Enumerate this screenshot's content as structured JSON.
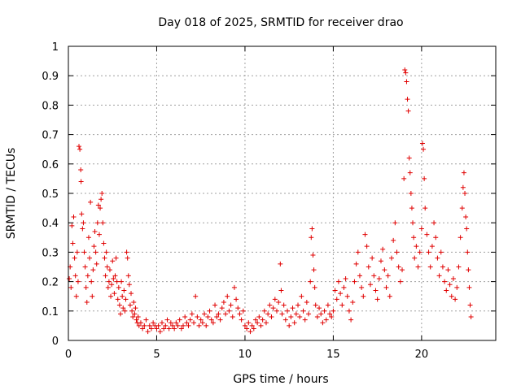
{
  "chart_data": {
    "type": "scatter",
    "title": "Day 018 of 2025, SRMTID for receiver drao",
    "xlabel": "GPS time / hours",
    "ylabel": "SRMTID / TECUs",
    "xlim": [
      0,
      24.2
    ],
    "ylim": [
      0,
      1
    ],
    "xticks": [
      0,
      5,
      10,
      15,
      20
    ],
    "xtick_labels": [
      "0",
      "5",
      "10",
      "15",
      "20"
    ],
    "yticks": [
      0,
      0.1,
      0.2,
      0.3,
      0.4,
      0.5,
      0.6,
      0.7,
      0.8,
      0.9,
      1
    ],
    "ytick_labels": [
      "0",
      "0.1",
      "0.2",
      "0.3",
      "0.4",
      "0.5",
      "0.6",
      "0.7",
      "0.8",
      "0.9",
      "1"
    ],
    "grid": true,
    "marker": "+",
    "color": "#e00000",
    "series": [
      {
        "name": "SRMTID",
        "points": [
          [
            0.05,
            0.21
          ],
          [
            0.1,
            0.25
          ],
          [
            0.15,
            0.18
          ],
          [
            0.2,
            0.39
          ],
          [
            0.25,
            0.33
          ],
          [
            0.3,
            0.42
          ],
          [
            0.35,
            0.28
          ],
          [
            0.4,
            0.22
          ],
          [
            0.45,
            0.15
          ],
          [
            0.5,
            0.3
          ],
          [
            0.55,
            0.2
          ],
          [
            0.6,
            0.66
          ],
          [
            0.65,
            0.65
          ],
          [
            0.7,
            0.58
          ],
          [
            0.72,
            0.54
          ],
          [
            0.75,
            0.43
          ],
          [
            0.8,
            0.38
          ],
          [
            0.85,
            0.4
          ],
          [
            0.9,
            0.3
          ],
          [
            0.95,
            0.25
          ],
          [
            1.0,
            0.18
          ],
          [
            1.05,
            0.13
          ],
          [
            1.1,
            0.22
          ],
          [
            1.15,
            0.35
          ],
          [
            1.2,
            0.28
          ],
          [
            1.25,
            0.47
          ],
          [
            1.3,
            0.2
          ],
          [
            1.35,
            0.15
          ],
          [
            1.4,
            0.24
          ],
          [
            1.45,
            0.32
          ],
          [
            1.5,
            0.37
          ],
          [
            1.55,
            0.3
          ],
          [
            1.6,
            0.26
          ],
          [
            1.65,
            0.4
          ],
          [
            1.7,
            0.46
          ],
          [
            1.75,
            0.36
          ],
          [
            1.8,
            0.45
          ],
          [
            1.85,
            0.48
          ],
          [
            1.9,
            0.5
          ],
          [
            1.95,
            0.4
          ],
          [
            2.0,
            0.33
          ],
          [
            2.05,
            0.28
          ],
          [
            2.1,
            0.22
          ],
          [
            2.15,
            0.3
          ],
          [
            2.2,
            0.25
          ],
          [
            2.25,
            0.18
          ],
          [
            2.3,
            0.2
          ],
          [
            2.35,
            0.24
          ],
          [
            2.4,
            0.15
          ],
          [
            2.45,
            0.19
          ],
          [
            2.5,
            0.27
          ],
          [
            2.55,
            0.21
          ],
          [
            2.6,
            0.16
          ],
          [
            2.65,
            0.22
          ],
          [
            2.7,
            0.28
          ],
          [
            2.75,
            0.2
          ],
          [
            2.8,
            0.14
          ],
          [
            2.85,
            0.18
          ],
          [
            2.9,
            0.12
          ],
          [
            2.95,
            0.09
          ],
          [
            3.0,
            0.2
          ],
          [
            3.05,
            0.15
          ],
          [
            3.1,
            0.11
          ],
          [
            3.15,
            0.17
          ],
          [
            3.2,
            0.1
          ],
          [
            3.25,
            0.14
          ],
          [
            3.3,
            0.3
          ],
          [
            3.35,
            0.28
          ],
          [
            3.4,
            0.22
          ],
          [
            3.45,
            0.19
          ],
          [
            3.5,
            0.12
          ],
          [
            3.55,
            0.16
          ],
          [
            3.6,
            0.1
          ],
          [
            3.65,
            0.08
          ],
          [
            3.7,
            0.13
          ],
          [
            3.75,
            0.09
          ],
          [
            3.8,
            0.11
          ],
          [
            3.85,
            0.07
          ],
          [
            3.9,
            0.06
          ],
          [
            3.95,
            0.08
          ],
          [
            4.0,
            0.05
          ],
          [
            4.1,
            0.06
          ],
          [
            4.2,
            0.04
          ],
          [
            4.3,
            0.05
          ],
          [
            4.4,
            0.07
          ],
          [
            4.5,
            0.03
          ],
          [
            4.6,
            0.05
          ],
          [
            4.7,
            0.04
          ],
          [
            4.8,
            0.06
          ],
          [
            4.9,
            0.05
          ],
          [
            5.0,
            0.04
          ],
          [
            5.1,
            0.05
          ],
          [
            5.2,
            0.03
          ],
          [
            5.3,
            0.06
          ],
          [
            5.4,
            0.04
          ],
          [
            5.5,
            0.05
          ],
          [
            5.6,
            0.07
          ],
          [
            5.7,
            0.04
          ],
          [
            5.8,
            0.06
          ],
          [
            5.9,
            0.05
          ],
          [
            6.0,
            0.04
          ],
          [
            6.1,
            0.06
          ],
          [
            6.2,
            0.05
          ],
          [
            6.3,
            0.07
          ],
          [
            6.4,
            0.04
          ],
          [
            6.5,
            0.05
          ],
          [
            6.6,
            0.08
          ],
          [
            6.7,
            0.06
          ],
          [
            6.8,
            0.05
          ],
          [
            6.9,
            0.07
          ],
          [
            7.0,
            0.09
          ],
          [
            7.1,
            0.06
          ],
          [
            7.2,
            0.15
          ],
          [
            7.3,
            0.08
          ],
          [
            7.4,
            0.05
          ],
          [
            7.5,
            0.07
          ],
          [
            7.6,
            0.06
          ],
          [
            7.7,
            0.09
          ],
          [
            7.8,
            0.05
          ],
          [
            7.9,
            0.08
          ],
          [
            8.0,
            0.1
          ],
          [
            8.1,
            0.07
          ],
          [
            8.2,
            0.06
          ],
          [
            8.3,
            0.12
          ],
          [
            8.4,
            0.08
          ],
          [
            8.5,
            0.09
          ],
          [
            8.6,
            0.07
          ],
          [
            8.7,
            0.11
          ],
          [
            8.8,
            0.13
          ],
          [
            8.9,
            0.09
          ],
          [
            9.0,
            0.15
          ],
          [
            9.1,
            0.1
          ],
          [
            9.2,
            0.12
          ],
          [
            9.3,
            0.08
          ],
          [
            9.4,
            0.18
          ],
          [
            9.5,
            0.14
          ],
          [
            9.6,
            0.11
          ],
          [
            9.7,
            0.09
          ],
          [
            9.8,
            0.07
          ],
          [
            9.9,
            0.1
          ],
          [
            10.0,
            0.05
          ],
          [
            10.1,
            0.04
          ],
          [
            10.2,
            0.06
          ],
          [
            10.3,
            0.03
          ],
          [
            10.4,
            0.05
          ],
          [
            10.5,
            0.04
          ],
          [
            10.6,
            0.07
          ],
          [
            10.7,
            0.06
          ],
          [
            10.8,
            0.08
          ],
          [
            10.9,
            0.05
          ],
          [
            11.0,
            0.07
          ],
          [
            11.1,
            0.1
          ],
          [
            11.2,
            0.06
          ],
          [
            11.3,
            0.09
          ],
          [
            11.4,
            0.12
          ],
          [
            11.5,
            0.08
          ],
          [
            11.6,
            0.11
          ],
          [
            11.7,
            0.14
          ],
          [
            11.8,
            0.1
          ],
          [
            11.9,
            0.13
          ],
          [
            12.0,
            0.26
          ],
          [
            12.05,
            0.17
          ],
          [
            12.1,
            0.09
          ],
          [
            12.2,
            0.12
          ],
          [
            12.3,
            0.07
          ],
          [
            12.4,
            0.1
          ],
          [
            12.5,
            0.05
          ],
          [
            12.6,
            0.08
          ],
          [
            12.7,
            0.11
          ],
          [
            12.8,
            0.06
          ],
          [
            12.9,
            0.09
          ],
          [
            13.0,
            0.12
          ],
          [
            13.1,
            0.08
          ],
          [
            13.2,
            0.15
          ],
          [
            13.3,
            0.1
          ],
          [
            13.4,
            0.07
          ],
          [
            13.5,
            0.13
          ],
          [
            13.6,
            0.09
          ],
          [
            13.7,
            0.2
          ],
          [
            13.75,
            0.35
          ],
          [
            13.8,
            0.38
          ],
          [
            13.85,
            0.29
          ],
          [
            13.9,
            0.24
          ],
          [
            13.95,
            0.18
          ],
          [
            14.0,
            0.12
          ],
          [
            14.1,
            0.08
          ],
          [
            14.2,
            0.11
          ],
          [
            14.3,
            0.09
          ],
          [
            14.4,
            0.06
          ],
          [
            14.5,
            0.1
          ],
          [
            14.6,
            0.07
          ],
          [
            14.7,
            0.12
          ],
          [
            14.8,
            0.09
          ],
          [
            14.9,
            0.08
          ],
          [
            15.0,
            0.1
          ],
          [
            15.1,
            0.17
          ],
          [
            15.2,
            0.14
          ],
          [
            15.3,
            0.2
          ],
          [
            15.4,
            0.16
          ],
          [
            15.5,
            0.12
          ],
          [
            15.6,
            0.18
          ],
          [
            15.7,
            0.21
          ],
          [
            15.8,
            0.15
          ],
          [
            15.9,
            0.1
          ],
          [
            16.0,
            0.07
          ],
          [
            16.1,
            0.13
          ],
          [
            16.2,
            0.2
          ],
          [
            16.3,
            0.26
          ],
          [
            16.4,
            0.3
          ],
          [
            16.5,
            0.22
          ],
          [
            16.6,
            0.18
          ],
          [
            16.7,
            0.15
          ],
          [
            16.8,
            0.36
          ],
          [
            16.9,
            0.32
          ],
          [
            17.0,
            0.25
          ],
          [
            17.1,
            0.19
          ],
          [
            17.2,
            0.28
          ],
          [
            17.3,
            0.22
          ],
          [
            17.4,
            0.17
          ],
          [
            17.5,
            0.14
          ],
          [
            17.6,
            0.21
          ],
          [
            17.7,
            0.27
          ],
          [
            17.8,
            0.31
          ],
          [
            17.9,
            0.24
          ],
          [
            18.0,
            0.18
          ],
          [
            18.1,
            0.22
          ],
          [
            18.2,
            0.15
          ],
          [
            18.3,
            0.28
          ],
          [
            18.4,
            0.34
          ],
          [
            18.5,
            0.4
          ],
          [
            18.6,
            0.3
          ],
          [
            18.7,
            0.25
          ],
          [
            18.8,
            0.2
          ],
          [
            18.9,
            0.24
          ],
          [
            19.0,
            0.55
          ],
          [
            19.05,
            0.92
          ],
          [
            19.1,
            0.91
          ],
          [
            19.15,
            0.88
          ],
          [
            19.2,
            0.82
          ],
          [
            19.25,
            0.78
          ],
          [
            19.3,
            0.62
          ],
          [
            19.35,
            0.57
          ],
          [
            19.4,
            0.5
          ],
          [
            19.45,
            0.45
          ],
          [
            19.5,
            0.4
          ],
          [
            19.55,
            0.35
          ],
          [
            19.6,
            0.28
          ],
          [
            19.7,
            0.32
          ],
          [
            19.8,
            0.25
          ],
          [
            19.9,
            0.3
          ],
          [
            20.0,
            0.38
          ],
          [
            20.05,
            0.67
          ],
          [
            20.1,
            0.65
          ],
          [
            20.15,
            0.55
          ],
          [
            20.2,
            0.45
          ],
          [
            20.3,
            0.36
          ],
          [
            20.4,
            0.3
          ],
          [
            20.5,
            0.25
          ],
          [
            20.6,
            0.32
          ],
          [
            20.7,
            0.4
          ],
          [
            20.8,
            0.35
          ],
          [
            20.9,
            0.28
          ],
          [
            21.0,
            0.22
          ],
          [
            21.1,
            0.3
          ],
          [
            21.2,
            0.25
          ],
          [
            21.3,
            0.2
          ],
          [
            21.4,
            0.17
          ],
          [
            21.5,
            0.24
          ],
          [
            21.6,
            0.19
          ],
          [
            21.7,
            0.15
          ],
          [
            21.8,
            0.21
          ],
          [
            21.9,
            0.14
          ],
          [
            22.0,
            0.18
          ],
          [
            22.1,
            0.25
          ],
          [
            22.2,
            0.35
          ],
          [
            22.3,
            0.45
          ],
          [
            22.35,
            0.52
          ],
          [
            22.4,
            0.57
          ],
          [
            22.45,
            0.5
          ],
          [
            22.5,
            0.42
          ],
          [
            22.55,
            0.38
          ],
          [
            22.6,
            0.3
          ],
          [
            22.65,
            0.24
          ],
          [
            22.7,
            0.18
          ],
          [
            22.75,
            0.12
          ],
          [
            22.8,
            0.08
          ]
        ]
      }
    ]
  }
}
